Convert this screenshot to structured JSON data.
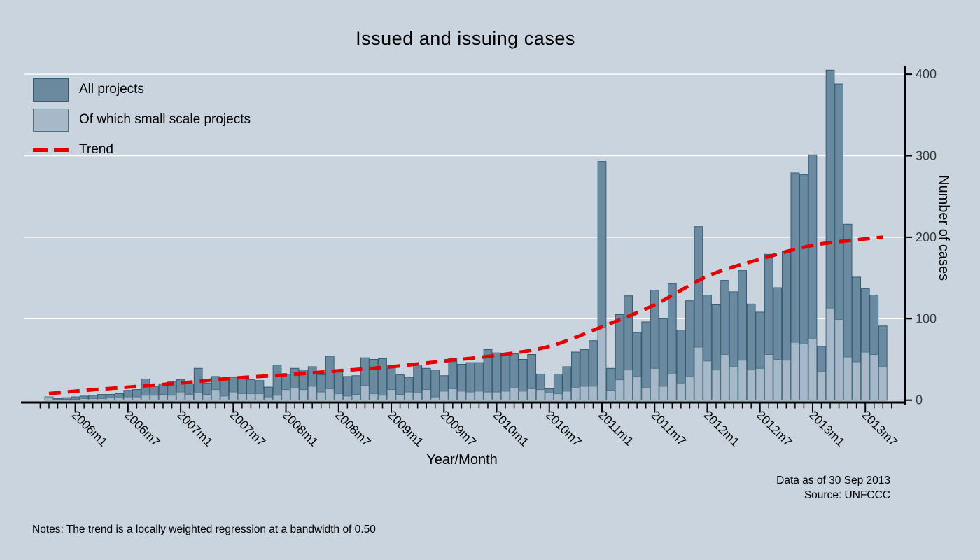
{
  "title": "Issued and issuing cases",
  "legend": {
    "all_projects": "All projects",
    "small_scale": "Of which small scale projects",
    "trend": "Trend"
  },
  "y_axis": {
    "title": "Number of cases",
    "ticks": [
      0,
      100,
      200,
      300,
      400
    ]
  },
  "x_axis": {
    "title": "Year/Month",
    "labeled_ticks": [
      "2006m1",
      "2006m7",
      "2007m1",
      "2007m7",
      "2008m1",
      "2008m7",
      "2009m1",
      "2009m7",
      "2010m1",
      "2010m7",
      "2011m1",
      "2011m7",
      "2012m1",
      "2012m7",
      "2013m1",
      "2013m7"
    ]
  },
  "annotations": {
    "data_as_of": "Data as of 30 Sep 2013",
    "source": "Source: UNFCCC",
    "notes": "Notes: The trend is a locally weighted regression at a bandwidth of 0.50"
  },
  "colors": {
    "background": "#c9d4de",
    "bar_all_fill": "#6b8a9f",
    "bar_all_stroke": "#315e77",
    "bar_small_fill": "#a7b9c8",
    "bar_small_stroke": "#4f7389",
    "trend": "#e60000",
    "gridline": "#ffffff",
    "axis": "#000000"
  },
  "chart_data": {
    "type": "bar",
    "title": "Issued and issuing cases",
    "xlabel": "Year/Month",
    "ylabel": "Number of cases",
    "ylim": [
      0,
      400
    ],
    "grid": "horizontal-white",
    "legend_position": "top-left-inside",
    "categories": [
      "2005m10",
      "2005m11",
      "2005m12",
      "2006m1",
      "2006m2",
      "2006m3",
      "2006m4",
      "2006m5",
      "2006m6",
      "2006m7",
      "2006m8",
      "2006m9",
      "2006m10",
      "2006m11",
      "2006m12",
      "2007m1",
      "2007m2",
      "2007m3",
      "2007m4",
      "2007m5",
      "2007m6",
      "2007m7",
      "2007m8",
      "2007m9",
      "2007m10",
      "2007m11",
      "2007m12",
      "2008m1",
      "2008m2",
      "2008m3",
      "2008m4",
      "2008m5",
      "2008m6",
      "2008m7",
      "2008m8",
      "2008m9",
      "2008m10",
      "2008m11",
      "2008m12",
      "2009m1",
      "2009m2",
      "2009m3",
      "2009m4",
      "2009m5",
      "2009m6",
      "2009m7",
      "2009m8",
      "2009m9",
      "2009m10",
      "2009m11",
      "2009m12",
      "2010m1",
      "2010m2",
      "2010m3",
      "2010m4",
      "2010m5",
      "2010m6",
      "2010m7",
      "2010m8",
      "2010m9",
      "2010m10",
      "2010m11",
      "2010m12",
      "2011m1",
      "2011m2",
      "2011m3",
      "2011m4",
      "2011m5",
      "2011m6",
      "2011m7",
      "2011m8",
      "2011m9",
      "2011m10",
      "2011m11",
      "2011m12",
      "2012m1",
      "2012m2",
      "2012m3",
      "2012m4",
      "2012m5",
      "2012m6",
      "2012m7",
      "2012m8",
      "2012m9",
      "2012m10",
      "2012m11",
      "2012m12",
      "2013m1",
      "2013m2",
      "2013m3",
      "2013m4",
      "2013m5",
      "2013m6",
      "2013m7",
      "2013m8",
      "2013m9"
    ],
    "series": [
      {
        "name": "All projects",
        "values": [
          4,
          2,
          3,
          4,
          5,
          6,
          7,
          7,
          8,
          12,
          13,
          26,
          17,
          20,
          23,
          25,
          20,
          39,
          21,
          29,
          27,
          28,
          27,
          25,
          24,
          16,
          43,
          32,
          39,
          36,
          41,
          31,
          54,
          36,
          29,
          30,
          52,
          50,
          51,
          42,
          31,
          28,
          43,
          39,
          37,
          30,
          51,
          44,
          46,
          46,
          62,
          58,
          56,
          57,
          50,
          56,
          32,
          14,
          32,
          41,
          59,
          62,
          73,
          293,
          39,
          105,
          128,
          83,
          96,
          135,
          100,
          143,
          86,
          122,
          213,
          129,
          117,
          147,
          133,
          159,
          118,
          108,
          179,
          138,
          183,
          279,
          277,
          301,
          66,
          405,
          388,
          216,
          151,
          137,
          129,
          91
        ]
      },
      {
        "name": "Of which small scale projects",
        "values": [
          4,
          1,
          1,
          1,
          2,
          2,
          2,
          3,
          3,
          4,
          4,
          6,
          6,
          7,
          6,
          10,
          7,
          9,
          7,
          13,
          5,
          10,
          8,
          8,
          8,
          4,
          6,
          13,
          15,
          13,
          17,
          10,
          14,
          8,
          5,
          7,
          18,
          8,
          6,
          13,
          7,
          10,
          9,
          13,
          4,
          11,
          14,
          11,
          10,
          11,
          10,
          10,
          11,
          15,
          11,
          14,
          13,
          9,
          8,
          11,
          15,
          17,
          17,
          89,
          12,
          25,
          37,
          29,
          15,
          39,
          17,
          32,
          21,
          29,
          65,
          48,
          37,
          56,
          41,
          49,
          37,
          39,
          56,
          50,
          49,
          71,
          69,
          76,
          35,
          113,
          99,
          53,
          47,
          59,
          56,
          41
        ]
      }
    ],
    "trend": {
      "name": "Trend",
      "points": [
        [
          "2005m10",
          8
        ],
        [
          "2006m1",
          11
        ],
        [
          "2006m7",
          16
        ],
        [
          "2007m1",
          21
        ],
        [
          "2007m7",
          27
        ],
        [
          "2008m1",
          31
        ],
        [
          "2008m7",
          36
        ],
        [
          "2009m1",
          41
        ],
        [
          "2009m7",
          48
        ],
        [
          "2010m1",
          55
        ],
        [
          "2010m7",
          66
        ],
        [
          "2011m1",
          90
        ],
        [
          "2011m7",
          117
        ],
        [
          "2012m1",
          152
        ],
        [
          "2012m7",
          173
        ],
        [
          "2013m1",
          190
        ],
        [
          "2013m7",
          198
        ],
        [
          "2013m9",
          200
        ]
      ]
    }
  }
}
